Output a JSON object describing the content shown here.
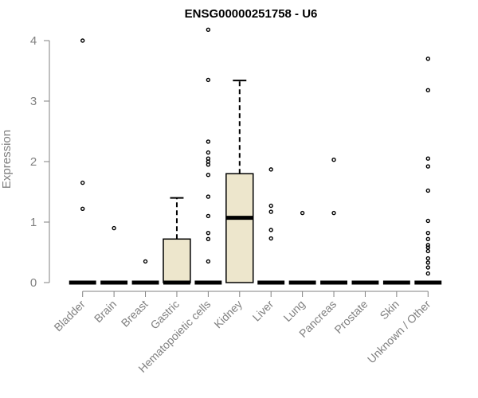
{
  "chart_data": {
    "type": "box",
    "title": "ENSG00000251758 - U6",
    "xlabel": "",
    "ylabel": "Expression",
    "ylim": [
      0,
      4.25
    ],
    "yticks": [
      0,
      1,
      2,
      3,
      4
    ],
    "grid": false,
    "legend": "none",
    "box_fill": "#ede6cc",
    "box_stroke": "#000000",
    "categories": [
      "Bladder",
      "Brain",
      "Breast",
      "Gastric",
      "Hematopoietic cells",
      "Kidney",
      "Liver",
      "Lung",
      "Pancreas",
      "Prostate",
      "Skin",
      "Unknown / Other"
    ],
    "boxes": [
      {
        "category": "Bladder",
        "q1": 0,
        "median": 0,
        "q3": 0,
        "whisker_low": 0,
        "whisker_high": 0,
        "outliers": [
          4.0,
          1.65,
          1.22
        ]
      },
      {
        "category": "Brain",
        "q1": 0,
        "median": 0,
        "q3": 0,
        "whisker_low": 0,
        "whisker_high": 0,
        "outliers": [
          0.9
        ]
      },
      {
        "category": "Breast",
        "q1": 0,
        "median": 0,
        "q3": 0,
        "whisker_low": 0,
        "whisker_high": 0,
        "outliers": [
          0.35
        ]
      },
      {
        "category": "Gastric",
        "q1": 0,
        "median": 0,
        "q3": 0.72,
        "whisker_low": 0,
        "whisker_high": 1.4,
        "outliers": []
      },
      {
        "category": "Hematopoietic cells",
        "q1": 0,
        "median": 0,
        "q3": 0,
        "whisker_low": 0,
        "whisker_high": 0,
        "outliers": [
          4.18,
          3.35,
          2.33,
          2.15,
          2.05,
          2.0,
          1.95,
          1.78,
          1.42,
          1.1,
          0.82,
          0.72,
          0.35
        ]
      },
      {
        "category": "Kidney",
        "q1": 0,
        "median": 1.07,
        "q3": 1.8,
        "whisker_low": 0,
        "whisker_high": 3.34,
        "outliers": []
      },
      {
        "category": "Liver",
        "q1": 0,
        "median": 0,
        "q3": 0,
        "whisker_low": 0,
        "whisker_high": 0,
        "outliers": [
          1.87,
          1.27,
          1.17,
          0.87,
          0.73
        ]
      },
      {
        "category": "Lung",
        "q1": 0,
        "median": 0,
        "q3": 0,
        "whisker_low": 0,
        "whisker_high": 0,
        "outliers": [
          1.15
        ]
      },
      {
        "category": "Pancreas",
        "q1": 0,
        "median": 0,
        "q3": 0,
        "whisker_low": 0,
        "whisker_high": 0,
        "outliers": [
          2.03,
          1.15
        ]
      },
      {
        "category": "Prostate",
        "q1": 0,
        "median": 0,
        "q3": 0,
        "whisker_low": 0,
        "whisker_high": 0,
        "outliers": []
      },
      {
        "category": "Skin",
        "q1": 0,
        "median": 0,
        "q3": 0,
        "whisker_low": 0,
        "whisker_high": 0,
        "outliers": []
      },
      {
        "category": "Unknown / Other",
        "q1": 0,
        "median": 0,
        "q3": 0,
        "whisker_low": 0,
        "whisker_high": 0,
        "outliers": [
          3.7,
          3.18,
          2.05,
          1.92,
          1.52,
          1.02,
          0.82,
          0.72,
          0.62,
          0.58,
          0.52,
          0.4,
          0.33,
          0.25,
          0.15
        ]
      }
    ]
  }
}
